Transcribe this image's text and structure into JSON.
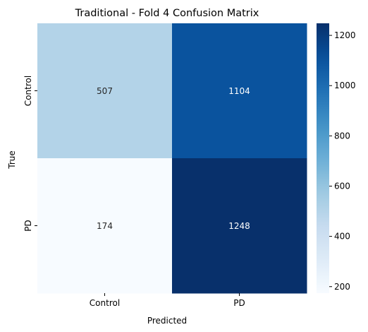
{
  "chart_data": {
    "type": "heatmap",
    "title": "Traditional - Fold 4 Confusion Matrix",
    "xlabel": "Predicted",
    "ylabel": "True",
    "x_categories": [
      "Control",
      "PD"
    ],
    "y_categories": [
      "Control",
      "PD"
    ],
    "values": [
      [
        507,
        1104
      ],
      [
        174,
        1248
      ]
    ],
    "colormap": "Blues",
    "color_range": [
      174,
      1248
    ],
    "colorbar_ticks": [
      200,
      400,
      600,
      800,
      1000,
      1200
    ]
  }
}
